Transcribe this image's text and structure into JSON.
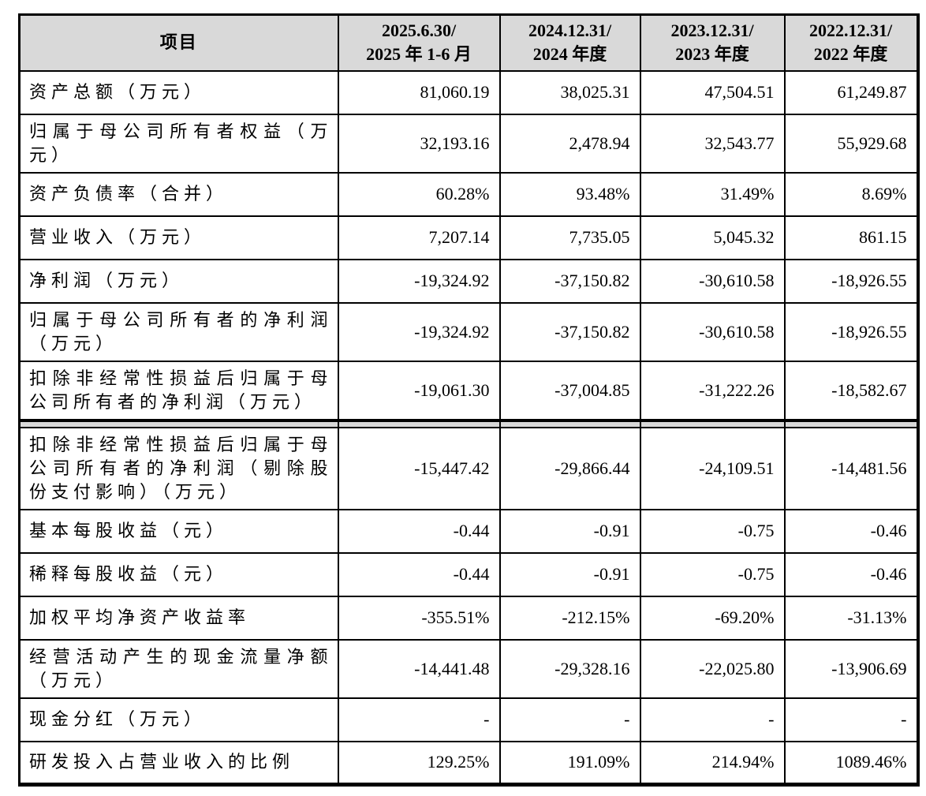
{
  "colors": {
    "border": "#000000",
    "header_bg": "#d9d9d9",
    "gap_bg": "#d8d8d8",
    "text": "#000000"
  },
  "table": {
    "header": {
      "item_col": "项目",
      "periods": [
        {
          "line1": "2025.6.30/",
          "line2": "2025 年 1-6 月"
        },
        {
          "line1": "2024.12.31/",
          "line2": "2024 年度"
        },
        {
          "line1": "2023.12.31/",
          "line2": "2023 年度"
        },
        {
          "line1": "2022.12.31/",
          "line2": "2022 年度"
        }
      ]
    },
    "section_break_after_row": 6,
    "rows": [
      {
        "label": "资产总额（万元）",
        "values": [
          "81,060.19",
          "38,025.31",
          "47,504.51",
          "61,249.87"
        ]
      },
      {
        "label": "归属于母公司所有者权益（万元）",
        "values": [
          "32,193.16",
          "2,478.94",
          "32,543.77",
          "55,929.68"
        ]
      },
      {
        "label": "资产负债率（合并）",
        "values": [
          "60.28%",
          "93.48%",
          "31.49%",
          "8.69%"
        ]
      },
      {
        "label": "营业收入（万元）",
        "values": [
          "7,207.14",
          "7,735.05",
          "5,045.32",
          "861.15"
        ]
      },
      {
        "label": "净利润（万元）",
        "values": [
          "-19,324.92",
          "-37,150.82",
          "-30,610.58",
          "-18,926.55"
        ]
      },
      {
        "label": "归属于母公司所有者的净利润（万元）",
        "values": [
          "-19,324.92",
          "-37,150.82",
          "-30,610.58",
          "-18,926.55"
        ]
      },
      {
        "label": "扣除非经常性损益后归属于母公司所有者的净利润（万元）",
        "values": [
          "-19,061.30",
          "-37,004.85",
          "-31,222.26",
          "-18,582.67"
        ]
      },
      {
        "label": "扣除非经常性损益后归属于母公司所有者的净利润（剔除股份支付影响）（万元）",
        "values": [
          "-15,447.42",
          "-29,866.44",
          "-24,109.51",
          "-14,481.56"
        ]
      },
      {
        "label": "基本每股收益（元）",
        "values": [
          "-0.44",
          "-0.91",
          "-0.75",
          "-0.46"
        ]
      },
      {
        "label": "稀释每股收益（元）",
        "values": [
          "-0.44",
          "-0.91",
          "-0.75",
          "-0.46"
        ]
      },
      {
        "label": "加权平均净资产收益率",
        "values": [
          "-355.51%",
          "-212.15%",
          "-69.20%",
          "-31.13%"
        ]
      },
      {
        "label": "经营活动产生的现金流量净额（万元）",
        "values": [
          "-14,441.48",
          "-29,328.16",
          "-22,025.80",
          "-13,906.69"
        ]
      },
      {
        "label": "现金分红（万元）",
        "values": [
          "-",
          "-",
          "-",
          "-"
        ]
      },
      {
        "label": "研发投入占营业收入的比例",
        "values": [
          "129.25%",
          "191.09%",
          "214.94%",
          "1089.46%"
        ]
      }
    ]
  }
}
